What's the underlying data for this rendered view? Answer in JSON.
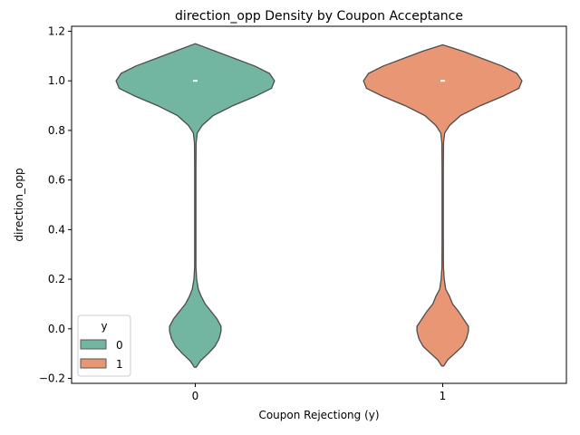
{
  "chart_data": {
    "type": "violin",
    "title": "direction_opp Density by Coupon Acceptance",
    "xlabel": "Coupon Rejectiong (y)",
    "ylabel": "direction_opp",
    "categories": [
      "0",
      "1"
    ],
    "ylim": [
      -0.22,
      1.22
    ],
    "yticks": [
      -0.2,
      0.0,
      0.2,
      0.4,
      0.6,
      0.8,
      1.0,
      1.2
    ],
    "ytick_labels": [
      "−0.2",
      "0.0",
      "0.2",
      "0.4",
      "0.6",
      "0.8",
      "1.0",
      "1.2"
    ],
    "grid": false,
    "legend": {
      "title": "y",
      "placement": "lower-left",
      "entries": [
        "0",
        "1"
      ]
    },
    "series": [
      {
        "name": "0",
        "color": "#72b6a1",
        "median": 1.0,
        "data_range": [
          -0.155,
          1.15
        ],
        "density_profile": [
          [
            -0.155,
            0.01
          ],
          [
            -0.13,
            0.05
          ],
          [
            -0.1,
            0.13
          ],
          [
            -0.07,
            0.2
          ],
          [
            -0.04,
            0.24
          ],
          [
            -0.01,
            0.26
          ],
          [
            0.01,
            0.26
          ],
          [
            0.04,
            0.22
          ],
          [
            0.07,
            0.16
          ],
          [
            0.1,
            0.1
          ],
          [
            0.13,
            0.06
          ],
          [
            0.16,
            0.03
          ],
          [
            0.2,
            0.014
          ],
          [
            0.25,
            0.006
          ],
          [
            0.35,
            0.006
          ],
          [
            0.5,
            0.006
          ],
          [
            0.65,
            0.006
          ],
          [
            0.75,
            0.008
          ],
          [
            0.79,
            0.02
          ],
          [
            0.82,
            0.07
          ],
          [
            0.86,
            0.18
          ],
          [
            0.9,
            0.38
          ],
          [
            0.94,
            0.62
          ],
          [
            0.97,
            0.77
          ],
          [
            1.0,
            0.8
          ],
          [
            1.03,
            0.75
          ],
          [
            1.06,
            0.6
          ],
          [
            1.09,
            0.4
          ],
          [
            1.12,
            0.2
          ],
          [
            1.15,
            0.0
          ]
        ]
      },
      {
        "name": "1",
        "color": "#e99675",
        "median": 1.0,
        "data_range": [
          -0.15,
          1.145
        ],
        "density_profile": [
          [
            -0.15,
            0.01
          ],
          [
            -0.125,
            0.05
          ],
          [
            -0.1,
            0.12
          ],
          [
            -0.07,
            0.2
          ],
          [
            -0.04,
            0.24
          ],
          [
            -0.01,
            0.26
          ],
          [
            0.01,
            0.26
          ],
          [
            0.04,
            0.21
          ],
          [
            0.07,
            0.16
          ],
          [
            0.1,
            0.1
          ],
          [
            0.13,
            0.07
          ],
          [
            0.16,
            0.03
          ],
          [
            0.2,
            0.016
          ],
          [
            0.25,
            0.007
          ],
          [
            0.35,
            0.006
          ],
          [
            0.5,
            0.006
          ],
          [
            0.65,
            0.006
          ],
          [
            0.75,
            0.008
          ],
          [
            0.79,
            0.02
          ],
          [
            0.82,
            0.07
          ],
          [
            0.86,
            0.18
          ],
          [
            0.9,
            0.38
          ],
          [
            0.94,
            0.62
          ],
          [
            0.97,
            0.77
          ],
          [
            1.0,
            0.8
          ],
          [
            1.03,
            0.75
          ],
          [
            1.06,
            0.6
          ],
          [
            1.09,
            0.4
          ],
          [
            1.12,
            0.2
          ],
          [
            1.145,
            0.0
          ]
        ]
      }
    ]
  }
}
